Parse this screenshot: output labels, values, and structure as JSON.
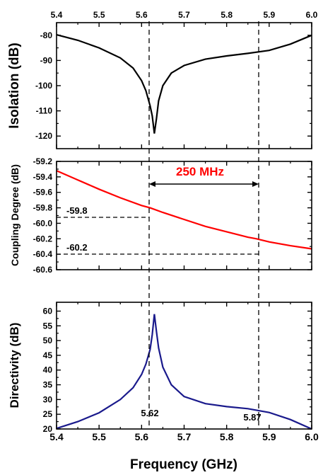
{
  "chart_data": [
    {
      "type": "line",
      "ylabel": "Isolation (dB)",
      "xlim": [
        5.4,
        6.0
      ],
      "ylim": [
        -125,
        -75
      ],
      "xticks": [
        "5.4",
        "5.5",
        "5.6",
        "5.7",
        "5.8",
        "5.9",
        "6.0"
      ],
      "yticks": [
        "-80",
        "-90",
        "-100",
        "-110",
        "-120"
      ],
      "series": [
        {
          "color": "#000000",
          "x": [
            5.4,
            5.45,
            5.5,
            5.55,
            5.58,
            5.6,
            5.61,
            5.62,
            5.625,
            5.63,
            5.635,
            5.64,
            5.65,
            5.67,
            5.7,
            5.75,
            5.8,
            5.85,
            5.9,
            5.95,
            6.0
          ],
          "y": [
            -79.8,
            -82,
            -85,
            -89,
            -93,
            -98,
            -102,
            -108,
            -112,
            -119,
            -113,
            -106,
            -100,
            -95,
            -92,
            -89.5,
            -88.2,
            -87.2,
            -86,
            -83.5,
            -80
          ]
        }
      ]
    },
    {
      "type": "line",
      "ylabel": "Coupling Degree (dB)",
      "xlim": [
        5.4,
        6.0
      ],
      "ylim": [
        -60.6,
        -59.2
      ],
      "yticks": [
        "-59.2",
        "-59.4",
        "-59.6",
        "-59.8",
        "-60.0",
        "-60.2",
        "-60.4",
        "-60.6"
      ],
      "series": [
        {
          "color": "#ff0000",
          "x": [
            5.4,
            5.45,
            5.5,
            5.55,
            5.6,
            5.62,
            5.65,
            5.7,
            5.75,
            5.8,
            5.85,
            5.87,
            5.9,
            5.95,
            6.0
          ],
          "y": [
            -59.32,
            -59.44,
            -59.56,
            -59.67,
            -59.77,
            -59.8,
            -59.86,
            -59.95,
            -60.04,
            -60.11,
            -60.18,
            -60.2,
            -60.24,
            -60.29,
            -60.33
          ]
        }
      ],
      "annotations": {
        "bandwidth": "250 MHz",
        "level_a": "-59.8",
        "level_b": "-60.2"
      }
    },
    {
      "type": "line",
      "ylabel": "Directivity (dB)",
      "xlabel": "Frequency (GHz)",
      "xlim": [
        5.4,
        6.0
      ],
      "ylim": [
        20,
        63
      ],
      "xticks": [
        "5.4",
        "5.5",
        "5.6",
        "5.7",
        "5.8",
        "5.9",
        "6.0"
      ],
      "yticks": [
        "20",
        "25",
        "30",
        "35",
        "40",
        "45",
        "50",
        "55",
        "60"
      ],
      "series": [
        {
          "color": "#1a1a8c",
          "x": [
            5.4,
            5.45,
            5.5,
            5.55,
            5.58,
            5.6,
            5.61,
            5.62,
            5.625,
            5.63,
            5.635,
            5.64,
            5.65,
            5.67,
            5.7,
            5.75,
            5.8,
            5.85,
            5.9,
            5.95,
            6.0
          ],
          "y": [
            20.2,
            22.5,
            25.5,
            30,
            34,
            38.5,
            42,
            47,
            52,
            59,
            53,
            47.5,
            41,
            35,
            31,
            28.6,
            27.6,
            26.9,
            25.6,
            23.2,
            20
          ]
        }
      ],
      "annotations": {
        "f1": "5.62",
        "f2": "5.87"
      }
    }
  ]
}
